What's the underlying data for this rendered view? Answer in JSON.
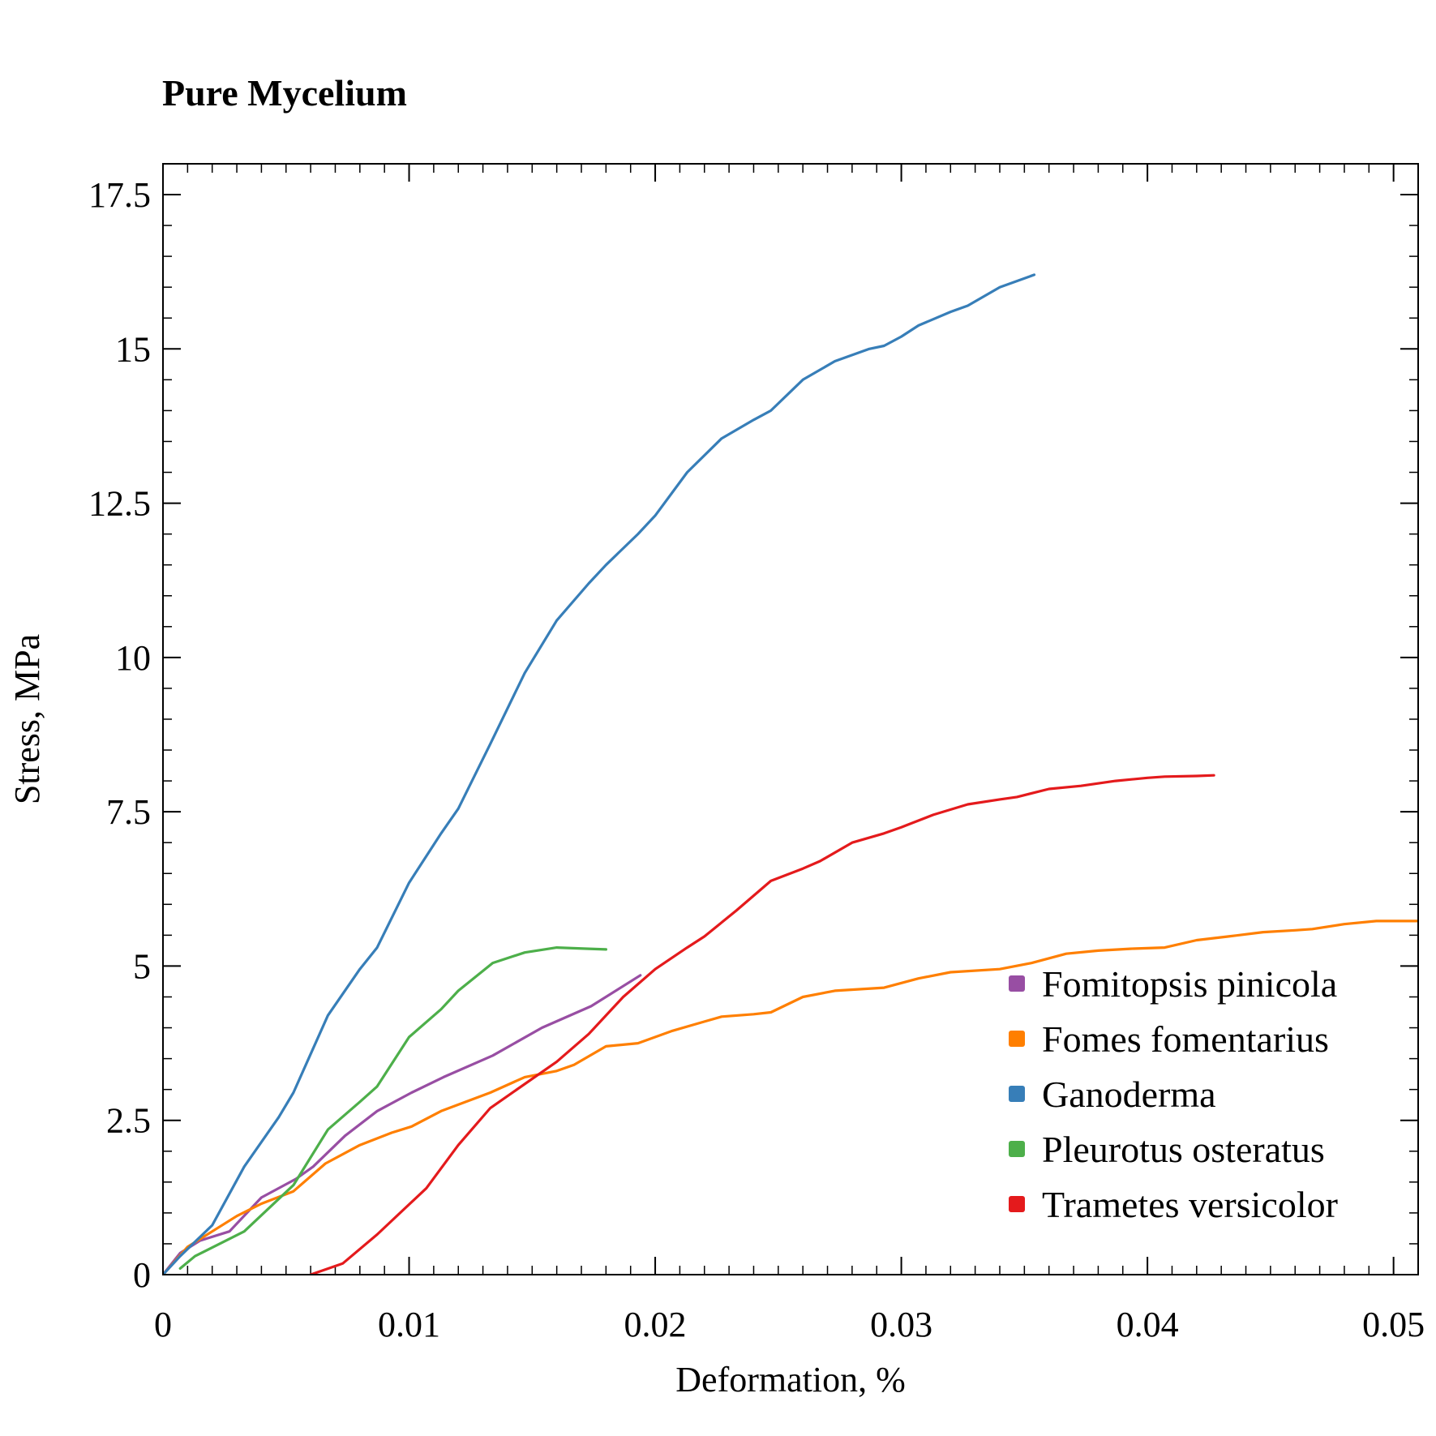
{
  "chart_data": {
    "type": "line",
    "title": "Pure Mycelium",
    "xlabel": "Deformation, %",
    "ylabel": "Stress, MPa",
    "xlim": [
      0,
      0.051
    ],
    "ylim": [
      0,
      17.5
    ],
    "xticks": [
      0,
      0.01,
      0.02,
      0.03,
      0.04,
      0.05
    ],
    "xtick_labels": [
      "0",
      "0.01",
      "0.02",
      "0.03",
      "0.04",
      "0.05"
    ],
    "yticks": [
      0,
      2.5,
      5,
      7.5,
      10,
      12.5,
      15,
      17.5
    ],
    "ytick_labels": [
      "0",
      "2.5",
      "5",
      "7.5",
      "10",
      "12.5",
      "15",
      "17.5"
    ],
    "grid": false,
    "legend_position": "bottom-right",
    "series": [
      {
        "name": "Fomitopsis pinicola",
        "color": "#984ea3",
        "x": [
          0,
          0.0007,
          0.0015,
          0.0027,
          0.004,
          0.0054,
          0.0061,
          0.0074,
          0.0087,
          0.0101,
          0.0114,
          0.0134,
          0.0154,
          0.0174,
          0.0194
        ],
        "y": [
          0,
          0.35,
          0.55,
          0.7,
          1.25,
          1.55,
          1.75,
          2.25,
          2.65,
          2.95,
          3.2,
          3.55,
          4.0,
          4.35,
          4.85
        ]
      },
      {
        "name": "Fomes fomentarius",
        "color": "#ff7f00",
        "x": [
          0,
          0.001,
          0.002,
          0.003,
          0.004,
          0.0053,
          0.0066,
          0.008,
          0.0093,
          0.0101,
          0.0113,
          0.0133,
          0.0147,
          0.016,
          0.0167,
          0.018,
          0.0193,
          0.0207,
          0.022,
          0.0227,
          0.024,
          0.0247,
          0.026,
          0.0273,
          0.0293,
          0.0307,
          0.032,
          0.034,
          0.0353,
          0.0367,
          0.038,
          0.0393,
          0.0407,
          0.042,
          0.0433,
          0.0447,
          0.046,
          0.0467,
          0.048,
          0.0493,
          0.051
        ],
        "y": [
          0,
          0.45,
          0.7,
          0.95,
          1.15,
          1.35,
          1.8,
          2.1,
          2.3,
          2.4,
          2.65,
          2.95,
          3.2,
          3.3,
          3.4,
          3.7,
          3.75,
          3.95,
          4.1,
          4.18,
          4.22,
          4.25,
          4.5,
          4.6,
          4.65,
          4.8,
          4.9,
          4.95,
          5.05,
          5.2,
          5.25,
          5.28,
          5.3,
          5.42,
          5.48,
          5.55,
          5.58,
          5.6,
          5.68,
          5.73,
          5.73
        ]
      },
      {
        "name": "Ganoderma",
        "color": "#377eb8",
        "x": [
          0,
          0.0007,
          0.002,
          0.0033,
          0.0047,
          0.0053,
          0.0067,
          0.008,
          0.0087,
          0.01,
          0.0113,
          0.012,
          0.0133,
          0.0147,
          0.016,
          0.0173,
          0.018,
          0.0193,
          0.02,
          0.0213,
          0.0227,
          0.024,
          0.0247,
          0.026,
          0.0273,
          0.0287,
          0.0293,
          0.03,
          0.0307,
          0.032,
          0.0327,
          0.034,
          0.0354
        ],
        "y": [
          0,
          0.3,
          0.8,
          1.75,
          2.55,
          2.95,
          4.2,
          4.95,
          5.3,
          6.35,
          7.15,
          7.55,
          8.6,
          9.75,
          10.6,
          11.2,
          11.5,
          12.0,
          12.3,
          13.0,
          13.55,
          13.85,
          14.0,
          14.5,
          14.8,
          15.0,
          15.05,
          15.2,
          15.38,
          15.6,
          15.7,
          16.0,
          16.2
        ]
      },
      {
        "name": "Pleurotus osteratus",
        "color": "#4daf4a",
        "x": [
          0.0007,
          0.0013,
          0.0033,
          0.0053,
          0.0067,
          0.008,
          0.0087,
          0.01,
          0.0113,
          0.012,
          0.0134,
          0.0147,
          0.016,
          0.0173,
          0.018
        ],
        "y": [
          0.1,
          0.3,
          0.7,
          1.45,
          2.35,
          2.8,
          3.05,
          3.85,
          4.3,
          4.6,
          5.05,
          5.22,
          5.3,
          5.28,
          5.27
        ]
      },
      {
        "name": "Trametes versicolor",
        "color": "#e41a1c",
        "x": [
          0.006,
          0.0073,
          0.0087,
          0.0107,
          0.012,
          0.0133,
          0.016,
          0.0173,
          0.0187,
          0.02,
          0.0213,
          0.022,
          0.0233,
          0.0247,
          0.026,
          0.0267,
          0.028,
          0.0293,
          0.03,
          0.0313,
          0.0327,
          0.034,
          0.0347,
          0.036,
          0.0373,
          0.0387,
          0.04,
          0.0407,
          0.042,
          0.0427
        ],
        "y": [
          0,
          0.18,
          0.65,
          1.4,
          2.1,
          2.7,
          3.45,
          3.9,
          4.5,
          4.95,
          5.3,
          5.48,
          5.9,
          6.38,
          6.58,
          6.7,
          7.0,
          7.15,
          7.25,
          7.45,
          7.62,
          7.7,
          7.74,
          7.87,
          7.92,
          8.0,
          8.05,
          8.07,
          8.08,
          8.09
        ]
      }
    ]
  }
}
